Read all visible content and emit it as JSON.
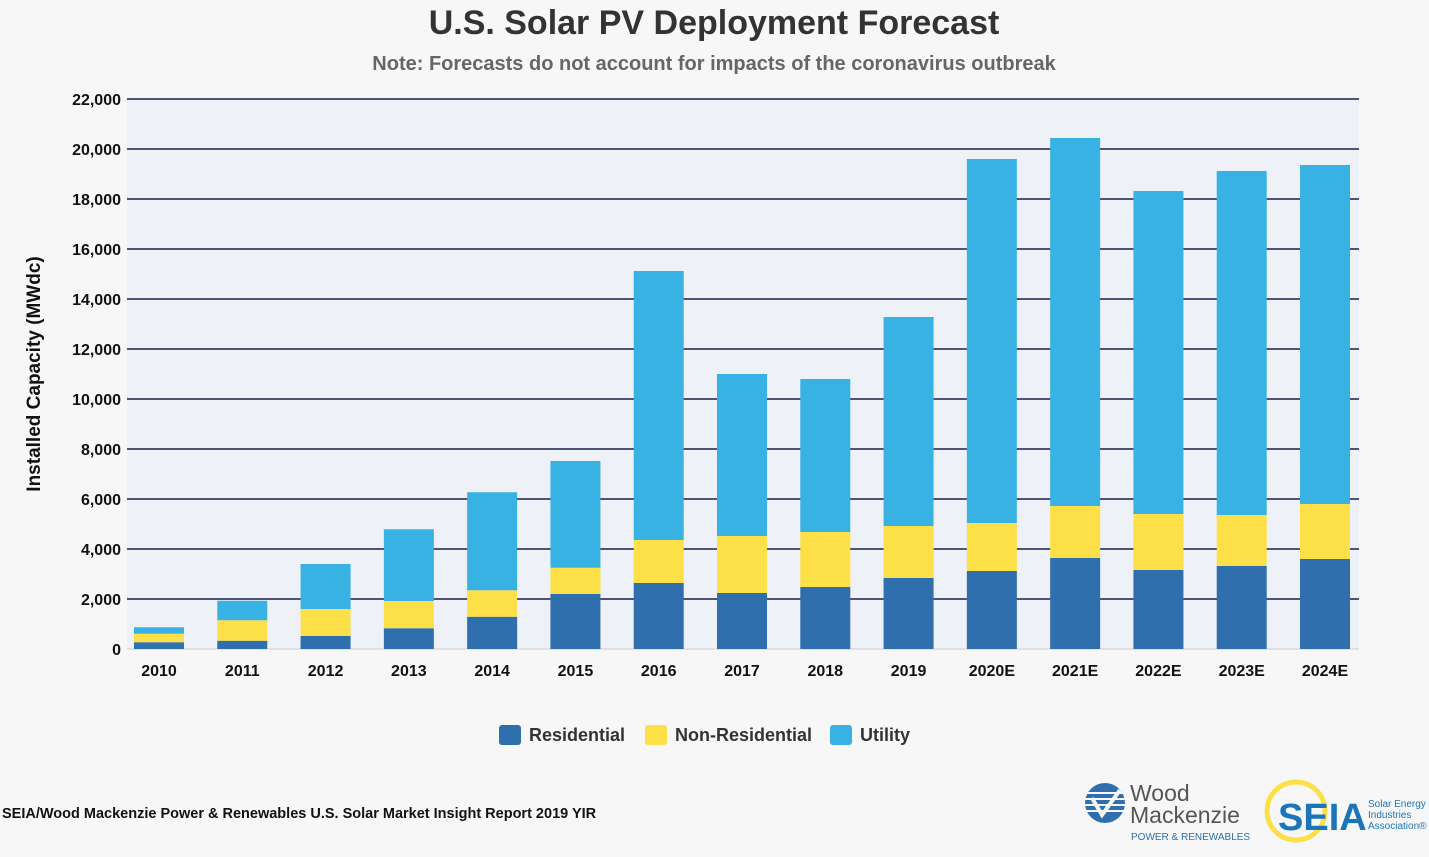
{
  "chart_data": {
    "type": "bar",
    "stacked": true,
    "title": "U.S. Solar PV Deployment Forecast",
    "subtitle": "Note: Forecasts do not account for impacts of the coronavirus outbreak",
    "xlabel": "",
    "ylabel": "Installed Capacity (MWdc)",
    "ylim": [
      0,
      22000
    ],
    "yticks": [
      0,
      2000,
      4000,
      6000,
      8000,
      10000,
      12000,
      14000,
      16000,
      18000,
      20000,
      22000
    ],
    "ytick_labels": [
      "0",
      "2,000",
      "4,000",
      "6,000",
      "8,000",
      "10,000",
      "12,000",
      "14,000",
      "16,000",
      "18,000",
      "20,000",
      "22,000"
    ],
    "grid": true,
    "legend_position": "bottom",
    "categories": [
      "2010",
      "2011",
      "2012",
      "2013",
      "2014",
      "2015",
      "2016",
      "2017",
      "2018",
      "2019",
      "2020E",
      "2021E",
      "2022E",
      "2023E",
      "2024E"
    ],
    "series": [
      {
        "name": "Residential",
        "color": "#2f6fad",
        "values": [
          270,
          330,
          520,
          830,
          1290,
          2200,
          2640,
          2240,
          2480,
          2840,
          3120,
          3640,
          3160,
          3320,
          3600
        ]
      },
      {
        "name": "Non-Residential",
        "color": "#fde047",
        "values": [
          340,
          820,
          1080,
          1090,
          1060,
          1050,
          1720,
          2280,
          2200,
          2080,
          1920,
          2080,
          2240,
          2040,
          2200
        ]
      },
      {
        "name": "Utility",
        "color": "#38b2e3",
        "values": [
          260,
          780,
          1800,
          2870,
          3920,
          4270,
          10760,
          6480,
          6120,
          8360,
          14560,
          14720,
          12920,
          13760,
          13560
        ]
      }
    ]
  },
  "footer": {
    "source": "SEIA/Wood Mackenzie Power & Renewables U.S. Solar Market Insight Report 2019 YIR",
    "logo_woodmac": {
      "line1": "Wood",
      "line2": "Mackenzie",
      "tagline": "POWER & RENEWABLES"
    },
    "logo_seia": {
      "mark": "SEIA",
      "line1": "Solar Energy",
      "line2": "Industries",
      "line3": "Association®"
    }
  }
}
